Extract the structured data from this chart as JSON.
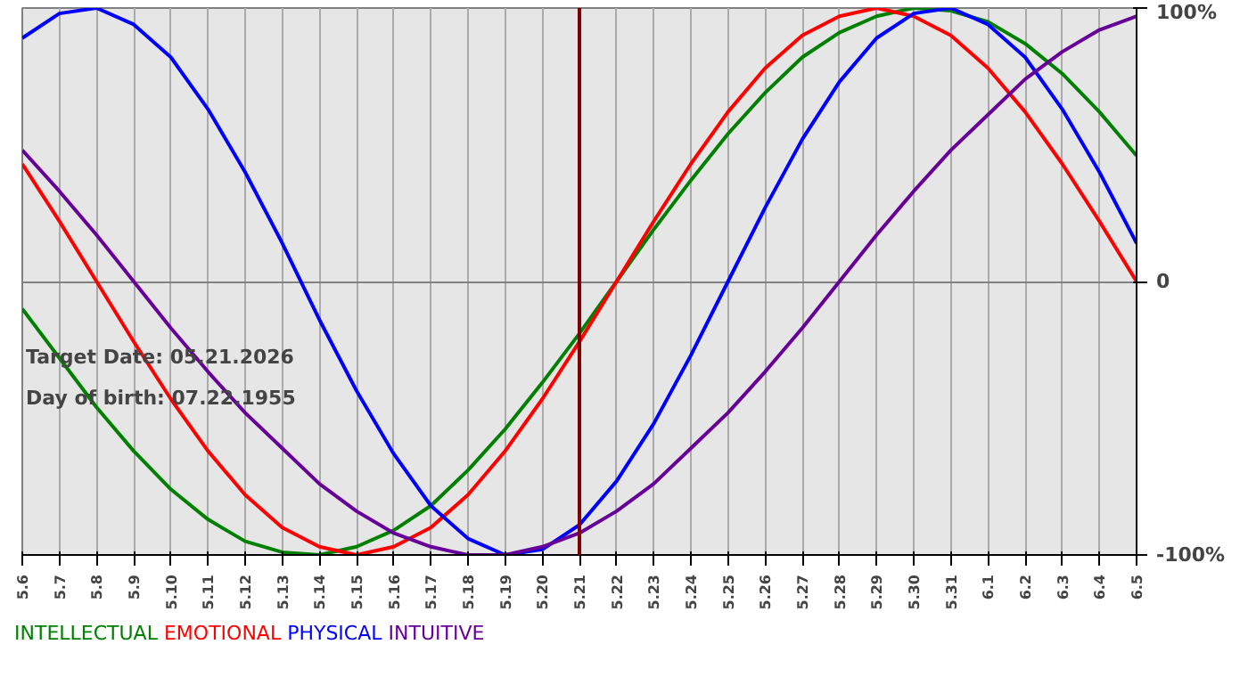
{
  "chart_data": {
    "type": "line",
    "categories": [
      "5.6",
      "5.7",
      "5.8",
      "5.9",
      "5.10",
      "5.11",
      "5.12",
      "5.13",
      "5.14",
      "5.15",
      "5.16",
      "5.17",
      "5.18",
      "5.19",
      "5.20",
      "5.21",
      "5.22",
      "5.23",
      "5.24",
      "5.25",
      "5.26",
      "5.27",
      "5.28",
      "5.29",
      "5.30",
      "5.31",
      "6.1",
      "6.2",
      "6.3",
      "6.4",
      "6.5"
    ],
    "series": [
      {
        "name": "INTELLECTUAL",
        "color": "#008000",
        "values": [
          -10,
          -28,
          -46,
          -62,
          -76,
          -87,
          -95,
          -99,
          -100,
          -97,
          -91,
          -82,
          -69,
          -54,
          -37,
          -19,
          0,
          19,
          37,
          54,
          69,
          82,
          91,
          97,
          100,
          99,
          95,
          87,
          76,
          62,
          46
        ]
      },
      {
        "name": "EMOTIONAL",
        "color": "#ff0000",
        "values": [
          43,
          22,
          0,
          -22,
          -43,
          -62,
          -78,
          -90,
          -97,
          -100,
          -97,
          -90,
          -78,
          -62,
          -43,
          -22,
          0,
          22,
          43,
          62,
          78,
          90,
          97,
          100,
          97,
          90,
          78,
          62,
          43,
          22,
          0
        ]
      },
      {
        "name": "PHYSICAL",
        "color": "#0000ff",
        "values": [
          89,
          98,
          100,
          94,
          82,
          63,
          40,
          14,
          -14,
          -40,
          -63,
          -82,
          -94,
          -100,
          -98,
          -89,
          -73,
          -52,
          -27,
          0,
          27,
          52,
          73,
          89,
          98,
          100,
          94,
          82,
          63,
          40,
          14
        ]
      },
      {
        "name": "INTUITIVE",
        "color": "#660099",
        "values": [
          48,
          33,
          17,
          0,
          -17,
          -33,
          -48,
          -61,
          -74,
          -84,
          -92,
          -97,
          -100,
          -100,
          -97,
          -92,
          -84,
          -74,
          -61,
          -48,
          -33,
          -17,
          0,
          17,
          33,
          48,
          61,
          74,
          84,
          92,
          97
        ]
      }
    ],
    "ylim": [
      -100,
      100
    ],
    "yticks": [
      {
        "value": -100,
        "label": "-100%"
      },
      0,
      {
        "value": 100,
        "label": "100%"
      }
    ],
    "grid": true,
    "legend": "bottom",
    "ref_lines": [
      {
        "axis": "x",
        "value": "5.21",
        "color": "#800000"
      }
    ],
    "annotations": [
      "Target Date: 05.21.2026",
      "Day of birth: 07.22.1955"
    ]
  }
}
